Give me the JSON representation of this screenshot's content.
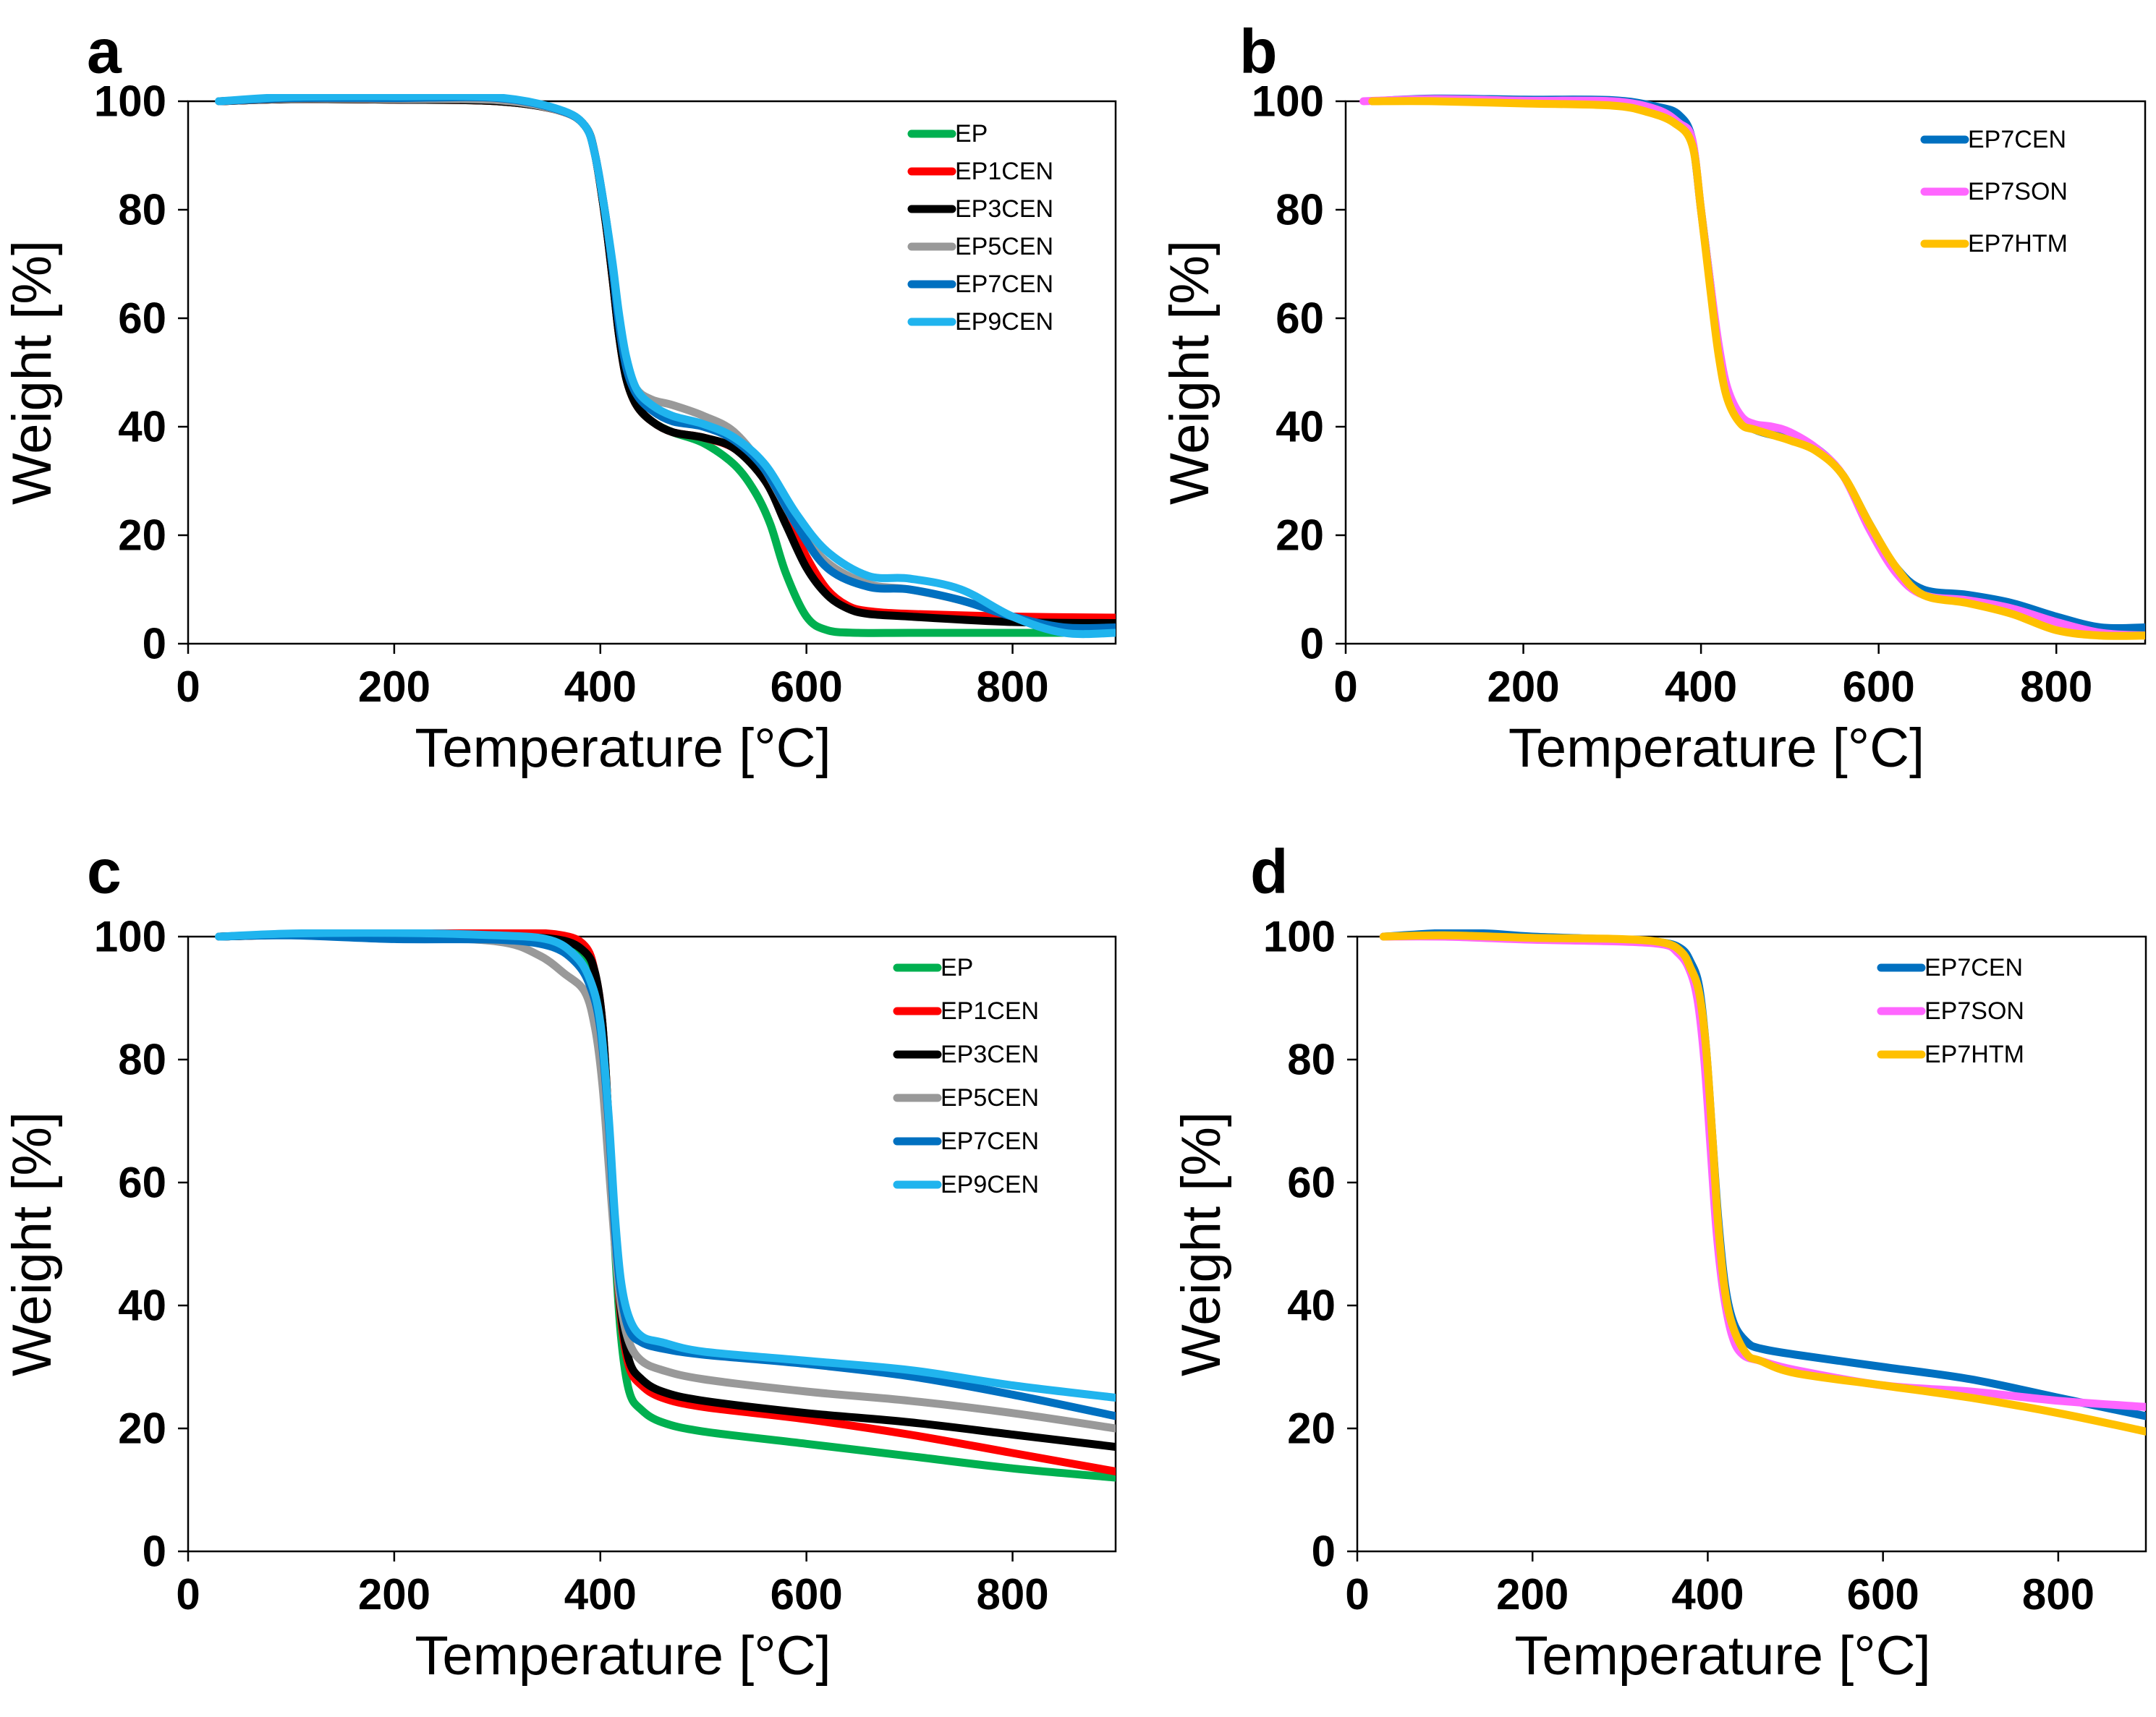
{
  "chart_data": [
    {
      "panel": "a",
      "type": "line",
      "xlabel": "Temperature [°C]",
      "ylabel": "Weight [%]",
      "xlim": [
        0,
        900
      ],
      "ylim": [
        0,
        100
      ],
      "xticks": [
        0,
        200,
        400,
        600,
        800
      ],
      "yticks": [
        0,
        20,
        40,
        60,
        80,
        100
      ],
      "legend_position": "top-right",
      "series": [
        {
          "name": "EP",
          "color": "#00b050",
          "x": [
            30,
            100,
            200,
            300,
            360,
            385,
            395,
            405,
            412,
            418,
            425,
            435,
            450,
            470,
            500,
            530,
            550,
            565,
            580,
            600,
            620,
            650,
            700,
            800,
            900
          ],
          "y": [
            100,
            100.4,
            100.3,
            100,
            98.3,
            95.5,
            90,
            78,
            67,
            57,
            49,
            44,
            41,
            39,
            37,
            33,
            28,
            22,
            13,
            5,
            2.5,
            2,
            2,
            2,
            2
          ]
        },
        {
          "name": "EP1CEN",
          "color": "#ff0000",
          "x": [
            30,
            100,
            200,
            300,
            360,
            385,
            395,
            405,
            412,
            418,
            425,
            435,
            450,
            470,
            500,
            530,
            560,
            580,
            600,
            620,
            640,
            660,
            700,
            800,
            900
          ],
          "y": [
            100,
            100.4,
            100.3,
            100,
            98.3,
            95.5,
            90,
            78,
            67,
            57,
            49,
            44,
            41,
            39,
            38,
            36,
            31,
            24,
            16,
            10,
            7,
            6,
            5.5,
            5,
            4.8
          ]
        },
        {
          "name": "EP3CEN",
          "color": "#000000",
          "x": [
            30,
            100,
            200,
            300,
            360,
            385,
            395,
            405,
            412,
            418,
            425,
            435,
            450,
            470,
            500,
            530,
            560,
            580,
            600,
            620,
            640,
            660,
            700,
            800,
            900
          ],
          "y": [
            100,
            100.4,
            100.3,
            100,
            98.3,
            95.5,
            90,
            78,
            67,
            57,
            49,
            44,
            41,
            39,
            38,
            36,
            30,
            22,
            14,
            9,
            6.5,
            5.5,
            5,
            4,
            3.8
          ]
        },
        {
          "name": "EP5CEN",
          "color": "#999999",
          "x": [
            30,
            100,
            200,
            300,
            360,
            385,
            395,
            405,
            412,
            418,
            425,
            435,
            450,
            470,
            500,
            530,
            560,
            590,
            620,
            660,
            700,
            750,
            800,
            850,
            900
          ],
          "y": [
            100,
            100.5,
            100.4,
            100.2,
            98.3,
            95.5,
            90,
            79,
            69,
            60,
            52,
            47,
            45,
            44,
            42,
            39,
            32,
            22,
            15,
            11,
            10,
            8,
            5,
            2.5,
            2.5
          ]
        },
        {
          "name": "EP7CEN",
          "color": "#0070c0",
          "x": [
            30,
            100,
            200,
            300,
            360,
            385,
            395,
            405,
            412,
            418,
            425,
            435,
            450,
            470,
            500,
            530,
            560,
            590,
            620,
            660,
            700,
            750,
            800,
            850,
            900
          ],
          "y": [
            100,
            100.6,
            100.6,
            100.6,
            98.4,
            95.5,
            90,
            79,
            69,
            59,
            51,
            46,
            43,
            41,
            40,
            37.5,
            32,
            22,
            14,
            10.5,
            10,
            8,
            5,
            3,
            3
          ]
        },
        {
          "name": "EP9CEN",
          "color": "#20b4ee",
          "x": [
            30,
            100,
            200,
            300,
            360,
            385,
            395,
            405,
            412,
            418,
            425,
            435,
            450,
            470,
            500,
            530,
            560,
            590,
            620,
            660,
            700,
            750,
            800,
            850,
            900
          ],
          "y": [
            100,
            100.8,
            100.9,
            100.7,
            98.5,
            95.5,
            90,
            79,
            70,
            61,
            53,
            47,
            44,
            42,
            40.5,
            38,
            33,
            24,
            17,
            12.5,
            12,
            10,
            5,
            2,
            2
          ]
        }
      ]
    },
    {
      "panel": "b",
      "type": "line",
      "xlabel": "Temperature [°C]",
      "ylabel": "Weight [%]",
      "xlim": [
        0,
        900
      ],
      "ylim": [
        0,
        100
      ],
      "xticks": [
        0,
        200,
        400,
        600,
        800
      ],
      "yticks": [
        0,
        20,
        40,
        60,
        80,
        100
      ],
      "legend_position": "top-right",
      "series": [
        {
          "name": "EP7CEN",
          "color": "#0070c0",
          "x": [
            30,
            100,
            200,
            300,
            350,
            375,
            390,
            400,
            410,
            420,
            430,
            445,
            460,
            480,
            500,
            530,
            560,
            590,
            620,
            650,
            700,
            750,
            800,
            850,
            900
          ],
          "y": [
            100,
            100.5,
            100.3,
            100.2,
            99,
            97.5,
            93,
            80,
            67,
            54,
            46,
            41,
            39.5,
            38.5,
            38,
            36,
            31,
            22,
            14,
            10,
            9,
            7.5,
            5,
            3,
            3
          ]
        },
        {
          "name": "EP7SON",
          "color": "#ff66ff",
          "x": [
            20,
            100,
            200,
            300,
            350,
            375,
            390,
            400,
            410,
            420,
            430,
            445,
            460,
            480,
            500,
            530,
            560,
            590,
            620,
            650,
            700,
            750,
            800,
            850,
            900
          ],
          "y": [
            100,
            100.4,
            100.1,
            100,
            98.5,
            96,
            93,
            80,
            67,
            55,
            47,
            42,
            40.5,
            40,
            39,
            36,
            31,
            21,
            13,
            9,
            8,
            6.5,
            4,
            2,
            1.5
          ]
        },
        {
          "name": "EP7HTM",
          "color": "#ffc000",
          "x": [
            30,
            100,
            200,
            300,
            340,
            370,
            390,
            400,
            410,
            420,
            430,
            445,
            460,
            480,
            500,
            530,
            560,
            590,
            620,
            650,
            700,
            750,
            800,
            850,
            900
          ],
          "y": [
            100,
            100,
            99.6,
            99.2,
            98,
            96,
            92,
            80,
            66,
            53,
            45,
            40.5,
            39.5,
            38.5,
            37.5,
            35.5,
            31,
            22,
            14,
            9,
            7.5,
            5.5,
            2.5,
            1.5,
            1.5
          ]
        }
      ]
    },
    {
      "panel": "c",
      "type": "line",
      "xlabel": "Temperature [°C]",
      "ylabel": "Weight [%]",
      "xlim": [
        0,
        900
      ],
      "ylim": [
        0,
        100
      ],
      "xticks": [
        0,
        200,
        400,
        600,
        800
      ],
      "yticks": [
        0,
        20,
        40,
        60,
        80,
        100
      ],
      "legend_position": "top-right",
      "series": [
        {
          "name": "EP",
          "color": "#00b050",
          "x": [
            30,
            100,
            200,
            300,
            360,
            385,
            395,
            402,
            408,
            414,
            420,
            428,
            440,
            460,
            500,
            600,
            700,
            800,
            900
          ],
          "y": [
            100,
            100.3,
            100.3,
            100.1,
            99,
            97,
            93,
            86,
            70,
            50,
            35,
            26,
            23,
            21,
            19.5,
            17.5,
            15.5,
            13.5,
            12
          ]
        },
        {
          "name": "EP1CEN",
          "color": "#ff0000",
          "x": [
            30,
            100,
            200,
            300,
            360,
            385,
            395,
            402,
            408,
            414,
            420,
            428,
            440,
            460,
            500,
            600,
            700,
            800,
            900
          ],
          "y": [
            100,
            100.3,
            100.4,
            100.7,
            100.3,
            98.5,
            94,
            86,
            70,
            52,
            38,
            30,
            27,
            25,
            23.5,
            21.5,
            19,
            16,
            13
          ]
        },
        {
          "name": "EP3CEN",
          "color": "#000000",
          "x": [
            30,
            100,
            200,
            300,
            360,
            385,
            395,
            402,
            408,
            414,
            420,
            428,
            440,
            460,
            500,
            600,
            700,
            800,
            900
          ],
          "y": [
            100,
            100.3,
            100.2,
            100,
            99.5,
            97.5,
            94,
            86,
            70,
            53,
            39,
            31,
            28,
            26,
            24.5,
            22.5,
            21,
            19,
            17
          ]
        },
        {
          "name": "EP5CEN",
          "color": "#999999",
          "x": [
            30,
            100,
            200,
            300,
            340,
            365,
            385,
            395,
            402,
            408,
            414,
            420,
            428,
            440,
            460,
            500,
            600,
            700,
            800,
            900
          ],
          "y": [
            100,
            100.3,
            100,
            99.2,
            97,
            94,
            91,
            85,
            76,
            63,
            50,
            40,
            34,
            31,
            29.5,
            28,
            26,
            24.5,
            22.5,
            20
          ]
        },
        {
          "name": "EP7CEN",
          "color": "#0070c0",
          "x": [
            30,
            100,
            200,
            300,
            350,
            375,
            390,
            400,
            408,
            414,
            420,
            428,
            440,
            460,
            500,
            600,
            700,
            800,
            900
          ],
          "y": [
            100,
            100.2,
            99.6,
            99.5,
            98.5,
            96,
            92,
            85,
            70,
            53,
            42,
            36,
            34,
            33,
            32,
            30.5,
            28.5,
            25.5,
            22
          ]
        },
        {
          "name": "EP9CEN",
          "color": "#20b4ee",
          "x": [
            30,
            100,
            200,
            300,
            350,
            375,
            390,
            400,
            408,
            414,
            420,
            428,
            440,
            460,
            500,
            600,
            700,
            800,
            900
          ],
          "y": [
            100,
            100.5,
            100.6,
            100.2,
            99.5,
            97,
            93,
            86,
            71,
            55,
            44,
            38,
            35,
            34,
            32.5,
            31,
            29.5,
            27,
            25
          ]
        }
      ]
    },
    {
      "panel": "d",
      "type": "line",
      "xlabel": "Temperature [°C]",
      "ylabel": "Weight [%]",
      "xlim": [
        0,
        900
      ],
      "ylim": [
        0,
        100
      ],
      "xticks": [
        0,
        200,
        400,
        600,
        800
      ],
      "yticks": [
        0,
        20,
        40,
        60,
        80,
        100
      ],
      "legend_position": "top-right",
      "series": [
        {
          "name": "EP7CEN",
          "color": "#0070c0",
          "x": [
            30,
            100,
            150,
            200,
            300,
            350,
            370,
            380,
            390,
            398,
            405,
            412,
            420,
            430,
            445,
            460,
            500,
            600,
            700,
            800,
            900
          ],
          "y": [
            100,
            100.6,
            100.5,
            100,
            99.5,
            99,
            98,
            96,
            92,
            82,
            68,
            54,
            43,
            37,
            34,
            33,
            32,
            30,
            28,
            25,
            22
          ]
        },
        {
          "name": "EP7SON",
          "color": "#ff66ff",
          "x": [
            30,
            100,
            200,
            300,
            350,
            365,
            378,
            388,
            396,
            403,
            410,
            418,
            428,
            440,
            460,
            500,
            600,
            700,
            800,
            900
          ],
          "y": [
            100,
            100,
            99.5,
            99.2,
            98.7,
            97.5,
            95,
            90,
            80,
            66,
            52,
            42,
            35,
            32,
            31,
            29.5,
            27,
            26,
            24.5,
            23.5
          ]
        },
        {
          "name": "EP7HTM",
          "color": "#ffc000",
          "x": [
            30,
            100,
            200,
            300,
            350,
            370,
            380,
            390,
            398,
            405,
            412,
            420,
            430,
            445,
            460,
            500,
            600,
            700,
            800,
            900
          ],
          "y": [
            100,
            100.2,
            99.8,
            99.6,
            99,
            97.5,
            95,
            91,
            82,
            68,
            53,
            42,
            36,
            32,
            31,
            29,
            27,
            25,
            22.5,
            19.5
          ]
        }
      ]
    }
  ]
}
